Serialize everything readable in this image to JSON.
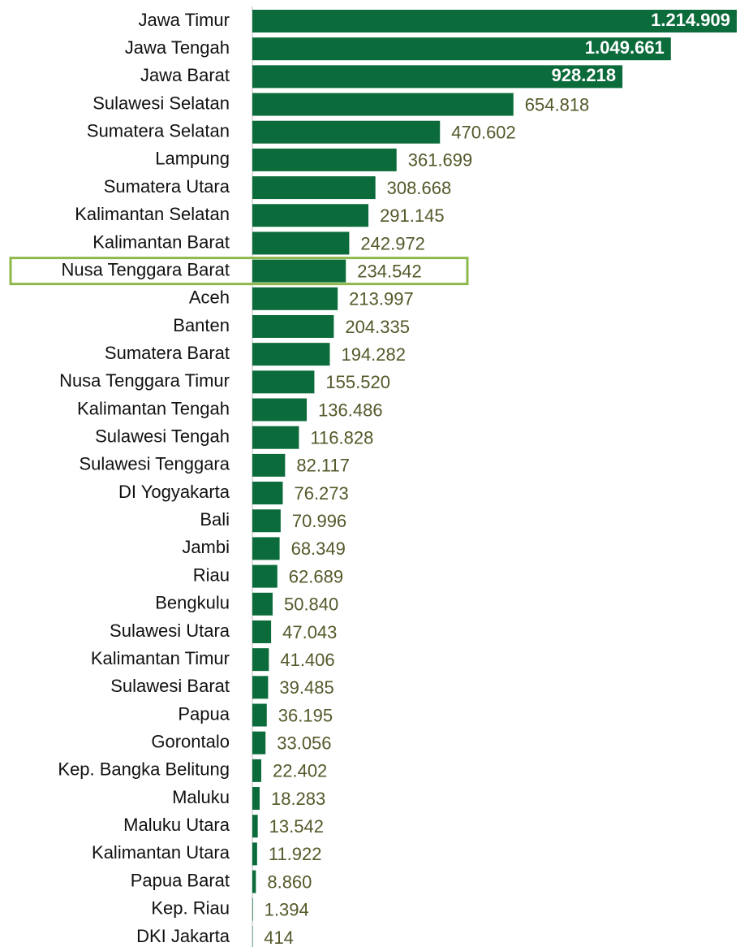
{
  "chart_data": {
    "type": "bar",
    "orientation": "horizontal",
    "categories": [
      "Jawa Timur",
      "Jawa Tengah",
      "Jawa Barat",
      "Sulawesi Selatan",
      "Sumatera Selatan",
      "Lampung",
      "Sumatera Utara",
      "Kalimantan Selatan",
      "Kalimantan Barat",
      "Nusa Tenggara Barat",
      "Aceh",
      "Banten",
      "Sumatera Barat",
      "Nusa Tenggara Timur",
      "Kalimantan Tengah",
      "Sulawesi Tengah",
      "Sulawesi Tenggara",
      "DI Yogyakarta",
      "Bali",
      "Jambi",
      "Riau",
      "Bengkulu",
      "Sulawesi Utara",
      "Kalimantan Timur",
      "Sulawesi Barat",
      "Papua",
      "Gorontalo",
      "Kep. Bangka Belitung",
      "Maluku",
      "Maluku Utara",
      "Kalimantan Utara",
      "Papua Barat",
      "Kep. Riau",
      "DKI Jakarta"
    ],
    "values": [
      1214909,
      1049661,
      928218,
      654818,
      470602,
      361699,
      308668,
      291145,
      242972,
      234542,
      213997,
      204335,
      194282,
      155520,
      136486,
      116828,
      82117,
      76273,
      70996,
      68349,
      62689,
      50840,
      47043,
      41406,
      39485,
      36195,
      33056,
      22402,
      18283,
      13542,
      11922,
      8860,
      1394,
      414
    ],
    "value_labels": [
      "1.214.909",
      "1.049.661",
      "928.218",
      "654.818",
      "470.602",
      "361.699",
      "308.668",
      "291.145",
      "242.972",
      "234.542",
      "213.997",
      "204.335",
      "194.282",
      "155.520",
      "136.486",
      "116.828",
      "82.117",
      "76.273",
      "70.996",
      "68.349",
      "62.689",
      "50.840",
      "47.043",
      "41.406",
      "39.485",
      "36.195",
      "33.056",
      "22.402",
      "18.283",
      "13.542",
      "11.922",
      "8.860",
      "1.394",
      "414"
    ],
    "color": "#0b6b3a",
    "highlight": 9,
    "highlight_color": "#8db84a"
  }
}
